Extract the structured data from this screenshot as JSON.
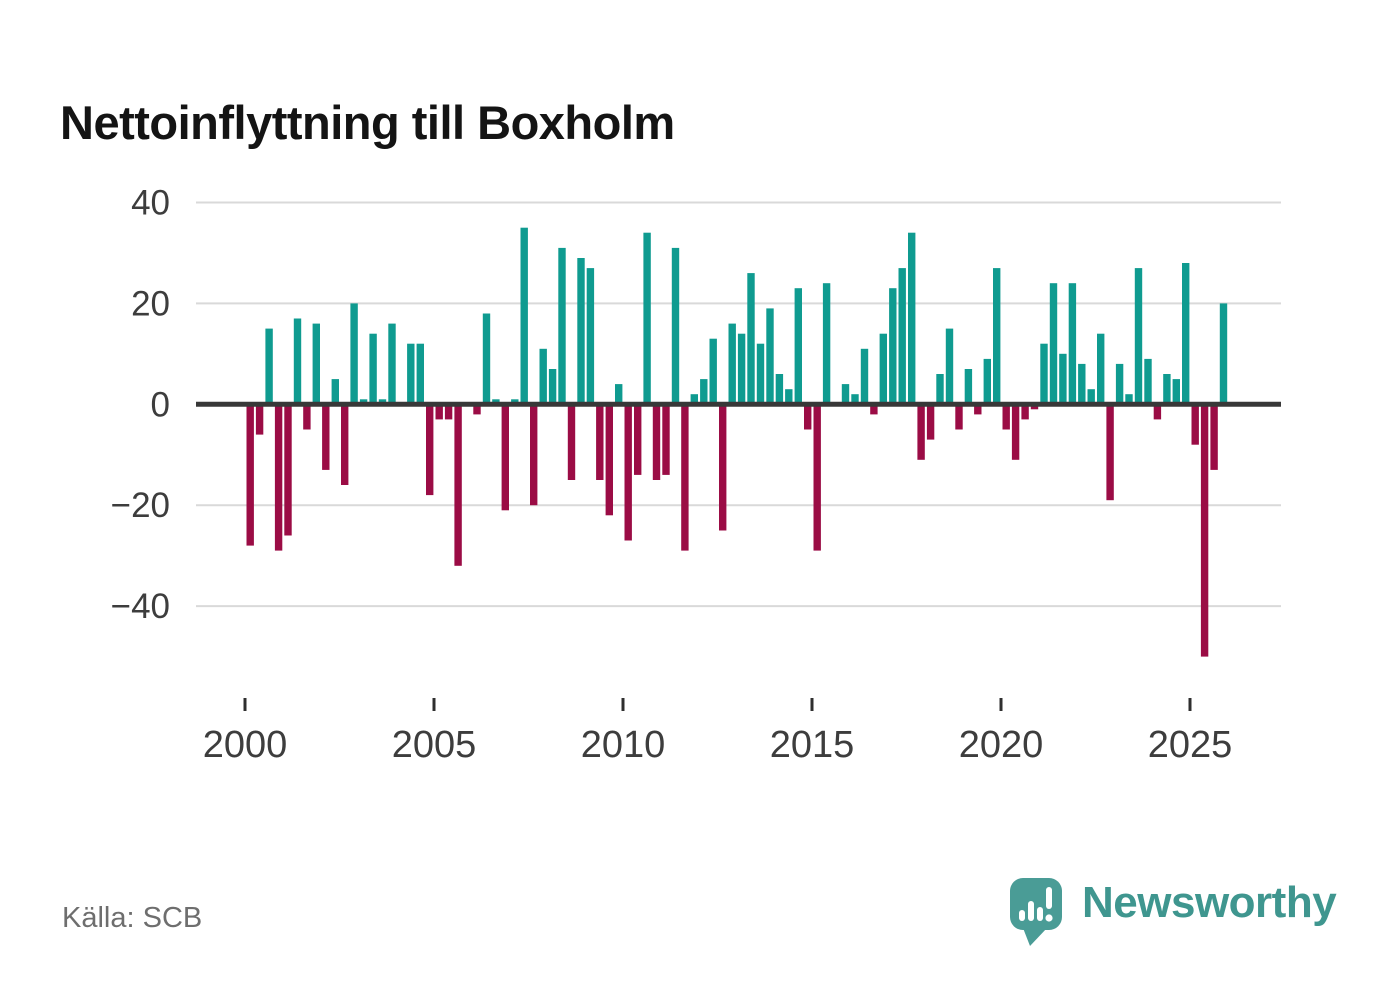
{
  "title": "Nettoinflyttning till Boxholm",
  "source": {
    "label": "Källa: SCB"
  },
  "brand": {
    "name": "Newsworthy",
    "icon": "speech-bubble-with-bar-chart-and-exclamation",
    "wordmark_color": "#3F968F",
    "icon_color": "#4A9C96"
  },
  "colors": {
    "positive_bar": "#0F9B90",
    "negative_bar": "#9B0C45",
    "gridline": "#D9D9D9",
    "zero_line": "#383838",
    "axis_text": "#3D3D3D",
    "tick_mark": "#2F2F2F",
    "title_text": "#141414",
    "source_text": "#6E6E6E",
    "background": "#FFFFFF"
  },
  "chart_data": {
    "type": "bar",
    "title": "Nettoinflyttning till Boxholm",
    "xlabel": "",
    "ylabel": "",
    "frequency": "quarterly",
    "x_start": "2000Q1",
    "x_end": "2025Q4",
    "ylim": [
      -52,
      42
    ],
    "grid": true,
    "legend": false,
    "positive_color": "#0F9B90",
    "negative_color": "#9B0C45",
    "y_ticks": [
      {
        "value": 40,
        "label": "40"
      },
      {
        "value": 20,
        "label": "20"
      },
      {
        "value": 0,
        "label": "0"
      },
      {
        "value": -20,
        "label": "−20"
      },
      {
        "value": -40,
        "label": "−40"
      }
    ],
    "x_ticks": [
      {
        "year": 2000,
        "label": "2000"
      },
      {
        "year": 2005,
        "label": "2005"
      },
      {
        "year": 2010,
        "label": "2010"
      },
      {
        "year": 2015,
        "label": "2015"
      },
      {
        "year": 2020,
        "label": "2020"
      },
      {
        "year": 2025,
        "label": "2025"
      }
    ],
    "categories": [
      "2000Q1",
      "2000Q2",
      "2000Q3",
      "2000Q4",
      "2001Q1",
      "2001Q2",
      "2001Q3",
      "2001Q4",
      "2002Q1",
      "2002Q2",
      "2002Q3",
      "2002Q4",
      "2003Q1",
      "2003Q2",
      "2003Q3",
      "2003Q4",
      "2004Q1",
      "2004Q2",
      "2004Q3",
      "2004Q4",
      "2005Q1",
      "2005Q2",
      "2005Q3",
      "2005Q4",
      "2006Q1",
      "2006Q2",
      "2006Q3",
      "2006Q4",
      "2007Q1",
      "2007Q2",
      "2007Q3",
      "2007Q4",
      "2008Q1",
      "2008Q2",
      "2008Q3",
      "2008Q4",
      "2009Q1",
      "2009Q2",
      "2009Q3",
      "2009Q4",
      "2010Q1",
      "2010Q2",
      "2010Q3",
      "2010Q4",
      "2011Q1",
      "2011Q2",
      "2011Q3",
      "2011Q4",
      "2012Q1",
      "2012Q2",
      "2012Q3",
      "2012Q4",
      "2013Q1",
      "2013Q2",
      "2013Q3",
      "2013Q4",
      "2014Q1",
      "2014Q2",
      "2014Q3",
      "2014Q4",
      "2015Q1",
      "2015Q2",
      "2015Q3",
      "2015Q4",
      "2016Q1",
      "2016Q2",
      "2016Q3",
      "2016Q4",
      "2017Q1",
      "2017Q2",
      "2017Q3",
      "2017Q4",
      "2018Q1",
      "2018Q2",
      "2018Q3",
      "2018Q4",
      "2019Q1",
      "2019Q2",
      "2019Q3",
      "2019Q4",
      "2020Q1",
      "2020Q2",
      "2020Q3",
      "2020Q4",
      "2021Q1",
      "2021Q2",
      "2021Q3",
      "2021Q4",
      "2022Q1",
      "2022Q2",
      "2022Q3",
      "2022Q4",
      "2023Q1",
      "2023Q2",
      "2023Q3",
      "2023Q4",
      "2024Q1",
      "2024Q2",
      "2024Q3",
      "2024Q4",
      "2025Q1",
      "2025Q2",
      "2025Q3",
      "2025Q4"
    ],
    "values": [
      -28,
      -6,
      15,
      -29,
      -26,
      17,
      -5,
      16,
      -13,
      5,
      -16,
      20,
      1,
      14,
      1,
      16,
      0,
      12,
      12,
      -18,
      -3,
      -3,
      -32,
      0,
      -2,
      18,
      1,
      -21,
      1,
      35,
      -20,
      11,
      7,
      31,
      -15,
      29,
      27,
      -15,
      -22,
      4,
      -27,
      -14,
      34,
      -15,
      -14,
      31,
      -29,
      2,
      5,
      13,
      -25,
      16,
      14,
      26,
      12,
      19,
      6,
      3,
      23,
      -5,
      -29,
      24,
      0,
      4,
      2,
      11,
      -2,
      14,
      23,
      27,
      34,
      -11,
      -7,
      6,
      15,
      -5,
      7,
      -2,
      9,
      27,
      -5,
      -11,
      -3,
      -1,
      12,
      24,
      10,
      24,
      8,
      3,
      14,
      -19,
      8,
      2,
      27,
      9,
      -3,
      6,
      5,
      28,
      -8,
      -50,
      -13,
      20
    ]
  }
}
